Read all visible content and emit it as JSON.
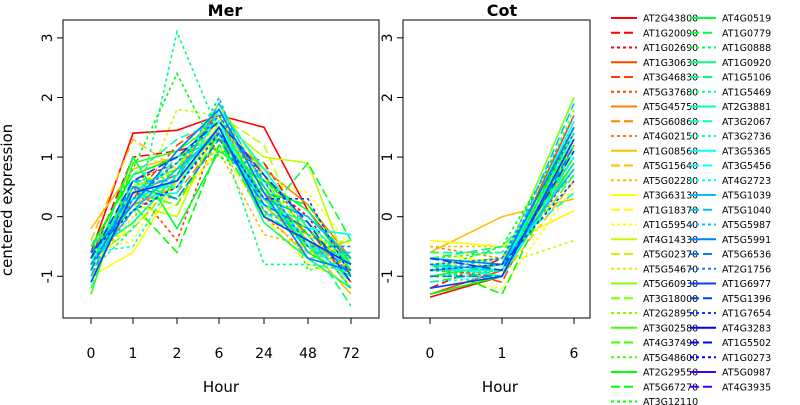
{
  "ylabel": "centered expression",
  "colors": [
    "#FF0000",
    "#FF4000",
    "#FF8000",
    "#FFBF00",
    "#FFFF00",
    "#BFFF00",
    "#80FF00",
    "#40FF00",
    "#00FF00",
    "#00FF40",
    "#00FF80",
    "#00FFBF",
    "#00FFFF",
    "#00BFFF",
    "#0080FF",
    "#0040FF",
    "#0000FF",
    "#4000FF",
    "#8000FF",
    "#BF00FF",
    "#FF00FF",
    "#FF00BF",
    "#FF0080",
    "#FF0040"
  ],
  "chart_data": [
    {
      "type": "line",
      "title": "Mer",
      "xlabel": "Hour",
      "ylabel": "centered expression",
      "categories": [
        "0",
        "1",
        "2",
        "6",
        "24",
        "48",
        "72"
      ],
      "ylim": [
        -1.7,
        3.3
      ],
      "yticks": [
        -1,
        0,
        1,
        2,
        3
      ],
      "series_values": [
        [
          -0.6,
          1.4,
          1.45,
          1.7,
          1.5,
          0.1,
          -0.8
        ],
        [
          -0.7,
          1.0,
          1.1,
          1.3,
          0.9,
          -0.2,
          -1.1
        ],
        [
          -0.9,
          0.6,
          0.9,
          1.6,
          0.6,
          0.0,
          -1.0
        ],
        [
          -0.8,
          0.4,
          0.7,
          1.8,
          0.4,
          -0.3,
          -1.2
        ],
        [
          -1.0,
          0.3,
          1.2,
          1.7,
          0.2,
          -0.5,
          -0.9
        ],
        [
          -0.8,
          0.5,
          -0.4,
          1.5,
          0.7,
          -0.2,
          -1.1
        ],
        [
          -0.5,
          0.2,
          0.5,
          1.5,
          0.8,
          0.2,
          -0.7
        ],
        [
          -0.7,
          0.3,
          0.4,
          1.3,
          0.3,
          -0.4,
          -0.9
        ],
        [
          -0.9,
          0.1,
          0.6,
          1.2,
          0.0,
          -0.6,
          -1.0
        ],
        [
          -0.2,
          0.8,
          1.0,
          1.4,
          0.2,
          -0.5,
          -1.3
        ],
        [
          -0.4,
          1.3,
          0.8,
          1.6,
          0.1,
          -0.7,
          -0.6
        ],
        [
          -0.6,
          0.4,
          0.3,
          1.1,
          -0.3,
          -0.5,
          -0.4
        ],
        [
          -1.0,
          -0.6,
          0.6,
          1.4,
          0.5,
          -0.2,
          -0.8
        ],
        [
          -0.8,
          -0.1,
          0.2,
          1.2,
          0.0,
          -0.8,
          -1.1
        ],
        [
          -0.6,
          -0.4,
          0.9,
          1.5,
          0.6,
          0.4,
          -0.5
        ],
        [
          -0.7,
          0.2,
          0.0,
          1.6,
          1.0,
          0.9,
          -1.0
        ],
        [
          -0.8,
          0.3,
          0.5,
          1.7,
          1.2,
          -0.5,
          -0.9
        ],
        [
          -0.9,
          0.0,
          1.8,
          1.7,
          0.3,
          -0.1,
          -0.9
        ],
        [
          -1.1,
          0.5,
          0.8,
          1.9,
          0.7,
          -0.6,
          -0.4
        ],
        [
          -0.7,
          -0.2,
          0.6,
          1.9,
          0.5,
          -0.4,
          -0.8
        ],
        [
          -0.9,
          0.6,
          0.7,
          2.0,
          0.0,
          -0.3,
          -1.2
        ],
        [
          -1.3,
          0.9,
          1.1,
          1.6,
          0.3,
          -0.5,
          -0.7
        ],
        [
          -0.6,
          0.4,
          0.2,
          1.4,
          0.1,
          -0.2,
          -0.9
        ],
        [
          -0.7,
          0.3,
          0.8,
          1.1,
          0.9,
          -0.9,
          -0.7
        ],
        [
          -0.5,
          0.7,
          1.0,
          1.3,
          0.5,
          -0.6,
          -1.0
        ],
        [
          -0.8,
          0.2,
          -0.6,
          1.2,
          0.4,
          0.2,
          -0.8
        ],
        [
          -0.6,
          0.8,
          2.4,
          1.0,
          0.7,
          -0.3,
          -0.7
        ],
        [
          -0.9,
          1.0,
          -0.2,
          1.1,
          0.6,
          0.1,
          -0.9
        ],
        [
          -0.8,
          0.6,
          0.3,
          1.3,
          0.0,
          0.9,
          -0.4
        ],
        [
          -0.7,
          0.5,
          0.5,
          1.4,
          0.2,
          -0.2,
          -1.0
        ],
        [
          -0.6,
          -0.1,
          0.7,
          1.5,
          -0.1,
          -0.7,
          -1.2
        ],
        [
          -0.7,
          0.4,
          0.9,
          1.6,
          0.3,
          -0.4,
          -1.5
        ],
        [
          -0.9,
          -0.2,
          3.1,
          1.4,
          -0.8,
          -0.8,
          -0.9
        ],
        [
          -0.5,
          0.3,
          0.6,
          1.5,
          0.2,
          -0.1,
          -0.8
        ],
        [
          -1.2,
          0.7,
          1.3,
          1.6,
          0.1,
          -0.5,
          -1.0
        ],
        [
          -0.6,
          -0.5,
          0.7,
          1.7,
          0.4,
          -0.7,
          -0.6
        ],
        [
          -0.8,
          0.3,
          0.4,
          1.8,
          0.8,
          -0.2,
          -0.3
        ],
        [
          -0.7,
          0.2,
          1.0,
          1.6,
          0.0,
          -0.4,
          -1.1
        ],
        [
          -0.9,
          0.5,
          0.5,
          1.5,
          0.6,
          -0.5,
          -0.8
        ],
        [
          -0.8,
          0.1,
          0.8,
          1.4,
          0.3,
          0.0,
          -0.7
        ],
        [
          -1.0,
          0.6,
          0.6,
          1.9,
          0.5,
          -0.6,
          -0.6
        ],
        [
          -0.7,
          0.4,
          0.7,
          2.0,
          0.1,
          -0.3,
          -1.2
        ],
        [
          -0.6,
          0.2,
          1.1,
          1.8,
          0.4,
          -0.7,
          -0.9
        ],
        [
          -0.9,
          0.5,
          0.3,
          1.3,
          0.2,
          -0.2,
          -1.0
        ],
        [
          -0.8,
          0.3,
          0.9,
          1.7,
          0.6,
          -0.5,
          -0.5
        ],
        [
          -1.1,
          0.4,
          0.6,
          1.5,
          0.0,
          -0.4,
          -0.8
        ],
        [
          -0.7,
          0.6,
          1.0,
          1.6,
          0.7,
          -0.1,
          -1.1
        ],
        [
          -0.6,
          0.1,
          0.5,
          1.4,
          0.3,
          0.3,
          -1.0
        ]
      ]
    },
    {
      "type": "line",
      "title": "Cot",
      "xlabel": "Hour",
      "ylabel": "",
      "categories": [
        "0",
        "1",
        "6"
      ],
      "ylim": [
        -1.7,
        3.3
      ],
      "yticks": [
        -1,
        0,
        1,
        2,
        3
      ],
      "series_values": [
        [
          -1.35,
          -1.0,
          1.5
        ],
        [
          -1.2,
          -0.7,
          1.2
        ],
        [
          -1.0,
          -0.9,
          0.8
        ],
        [
          -1.3,
          -0.9,
          1.7
        ],
        [
          -0.8,
          -1.1,
          1.3
        ],
        [
          -0.9,
          -1.0,
          1.4
        ],
        [
          -1.0,
          -0.8,
          0.9
        ],
        [
          -0.7,
          -0.9,
          1.1
        ],
        [
          -0.5,
          -0.7,
          1.0
        ],
        [
          -0.6,
          0.0,
          0.3
        ],
        [
          -0.8,
          -1.0,
          0.6
        ],
        [
          -0.5,
          -0.5,
          0.1
        ],
        [
          -0.4,
          -0.5,
          0.1
        ],
        [
          -0.6,
          -0.8,
          1.2
        ],
        [
          -1.0,
          -1.2,
          0.5
        ],
        [
          -0.8,
          -0.7,
          0.8
        ],
        [
          -0.9,
          -0.9,
          1.0
        ],
        [
          -0.8,
          -0.8,
          -0.4
        ],
        [
          -0.7,
          -0.8,
          2.0
        ],
        [
          -1.0,
          -1.0,
          1.6
        ],
        [
          -0.7,
          -0.9,
          1.8
        ],
        [
          -0.9,
          -0.8,
          1.3
        ],
        [
          -0.8,
          -0.9,
          0.7
        ],
        [
          -0.7,
          -0.6,
          1.1
        ],
        [
          -1.3,
          -1.0,
          1.5
        ],
        [
          -0.8,
          -1.3,
          1.2
        ],
        [
          -0.9,
          -0.5,
          1.5
        ],
        [
          -1.0,
          -0.8,
          1.0
        ],
        [
          -1.1,
          -0.9,
          1.4
        ],
        [
          -0.9,
          -0.9,
          1.2
        ],
        [
          -0.8,
          -1.0,
          0.9
        ],
        [
          -0.7,
          -0.5,
          0.7
        ],
        [
          -1.0,
          -0.9,
          0.9
        ],
        [
          -0.9,
          -0.9,
          1.1
        ],
        [
          -0.6,
          -0.6,
          0.4
        ],
        [
          -1.0,
          -1.0,
          1.3
        ],
        [
          -0.8,
          -0.9,
          1.6
        ],
        [
          -0.8,
          -1.0,
          1.0
        ],
        [
          -1.1,
          -1.0,
          1.4
        ],
        [
          -0.9,
          -0.8,
          0.8
        ],
        [
          -0.8,
          -0.9,
          1.9
        ],
        [
          -0.9,
          -0.7,
          1.7
        ],
        [
          -0.7,
          -0.8,
          1.5
        ],
        [
          -1.0,
          -1.0,
          1.2
        ],
        [
          -0.8,
          -0.7,
          1.4
        ],
        [
          -1.2,
          -1.0,
          1.3
        ],
        [
          -0.7,
          -0.9,
          1.1
        ],
        [
          -0.9,
          -0.8,
          0.6
        ]
      ]
    }
  ],
  "legend": {
    "columns": [
      [
        "AT2G43800",
        "AT1G20090",
        "AT1G02690",
        "AT1G30630",
        "AT3G46830",
        "AT5G37680",
        "AT5G45750",
        "AT5G60860",
        "AT4G02150",
        "AT1G08560",
        "AT5G15640",
        "AT5G02280",
        "AT3G63130",
        "AT1G18370",
        "AT1G59540",
        "AT4G14330",
        "AT5G02370",
        "AT5G54670",
        "AT5G60930",
        "AT3G18000",
        "AT2G28950",
        "AT3G02580",
        "AT4G37490",
        "AT5G48600",
        "AT2G29550",
        "AT5G67270",
        "AT3G12110"
      ],
      [
        "AT4G0519",
        "AT1G0779",
        "AT1G0888",
        "AT1G0920",
        "AT1G5106",
        "AT1G5469",
        "AT2G3881",
        "AT3G2067",
        "AT3G2736",
        "AT3G5365",
        "AT3G5456",
        "AT4G2723",
        "AT5G1039",
        "AT5G1040",
        "AT5G5987",
        "AT5G5991",
        "AT5G6536",
        "AT2G1756",
        "AT1G6977",
        "AT5G1396",
        "AT1G7654",
        "AT4G3283",
        "AT1G5502",
        "AT1G0273",
        "AT5G0987",
        "AT4G3935"
      ]
    ]
  }
}
